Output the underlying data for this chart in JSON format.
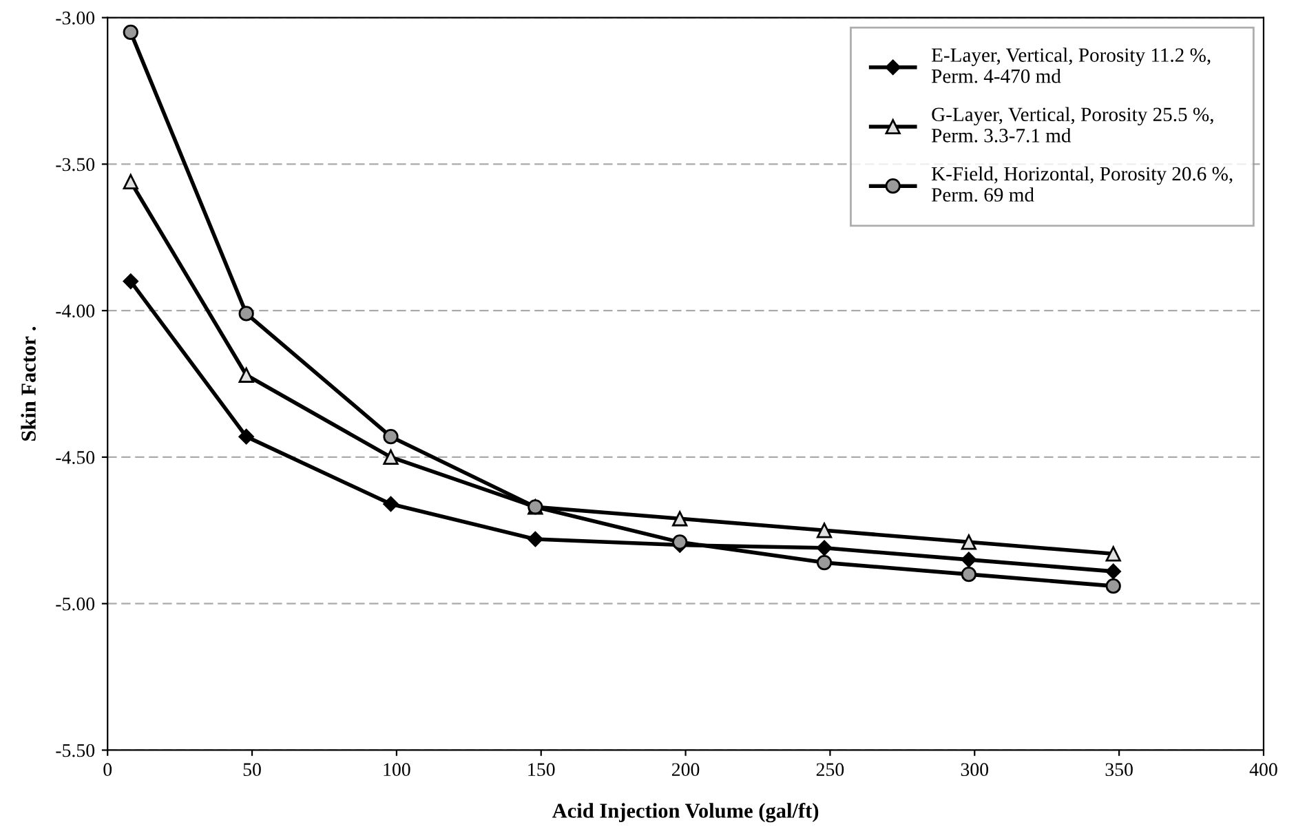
{
  "chart_data": {
    "type": "line",
    "xlabel": "Acid Injection Volume (gal/ft)",
    "ylabel": "Skin Factor .",
    "x": [
      8,
      48,
      98,
      148,
      198,
      248,
      298,
      348
    ],
    "series": [
      {
        "name": "E-Layer, Vertical, Porosity 11.2 %,\nPerm. 4-470 md",
        "color": "#000000",
        "marker": "diamond",
        "values": [
          -3.9,
          -4.43,
          -4.66,
          -4.78,
          -4.8,
          -4.81,
          -4.85,
          -4.89
        ]
      },
      {
        "name": "G-Layer, Vertical, Porosity 25.5 %,\nPerm. 3.3-7.1 md",
        "color": "#000000",
        "marker": "triangle",
        "values": [
          -3.56,
          -4.22,
          -4.5,
          -4.67,
          -4.71,
          -4.75,
          -4.79,
          -4.83
        ]
      },
      {
        "name": "K-Field, Horizontal, Porosity 20.6 %,\nPerm. 69 md",
        "color": "#000000",
        "marker": "circle",
        "values": [
          -3.05,
          -4.01,
          -4.43,
          -4.67,
          -4.79,
          -4.86,
          -4.9,
          -4.94
        ]
      }
    ],
    "xlim": [
      0,
      400
    ],
    "xticks": [
      0,
      50,
      100,
      150,
      200,
      250,
      300,
      350,
      400
    ],
    "ylim": [
      -5.5,
      -3.0
    ],
    "yticks": [
      {
        "value": -5.5,
        "label": "-5.50"
      },
      {
        "value": -5.0,
        "label": "-5.00"
      },
      {
        "value": -4.5,
        "label": "-4.50"
      },
      {
        "value": -4.0,
        "label": "-4.00"
      },
      {
        "value": -3.5,
        "label": "-3.50"
      },
      {
        "value": -3.0,
        "label": "-3.00"
      }
    ],
    "grid": "y",
    "legend": "top right",
    "line_style": "solid"
  }
}
